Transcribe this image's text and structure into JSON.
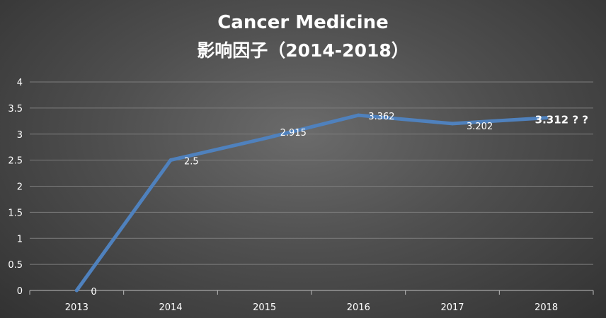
{
  "chart_data": {
    "type": "line",
    "title": "Cancer Medicine",
    "subtitle": "影响因子（2014-2018）",
    "categories": [
      "2013",
      "2014",
      "2015",
      "2016",
      "2017",
      "2018"
    ],
    "series": [
      {
        "values": [
          0,
          2.5,
          2.915,
          3.362,
          3.202,
          3.312
        ]
      }
    ],
    "data_labels": [
      "0",
      "2.5",
      "2.915",
      "3.362",
      "3.202",
      "3.312 ? ?"
    ],
    "yticks": [
      "0",
      "0.5",
      "1",
      "1.5",
      "2",
      "2.5",
      "3",
      "3.5",
      "4"
    ],
    "ylim": [
      0,
      4
    ],
    "grid": true,
    "legend": "none",
    "colors": {
      "line": "#4f81bd",
      "text": "#ffffff"
    }
  }
}
